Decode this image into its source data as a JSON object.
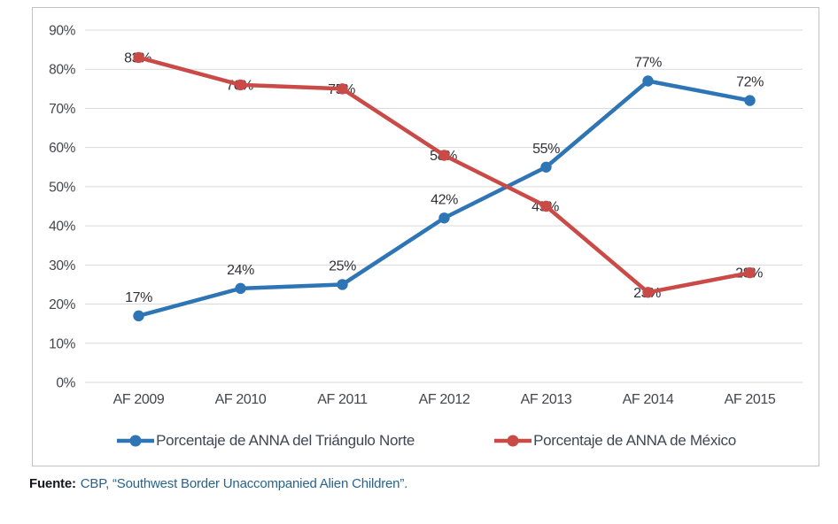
{
  "chart_data": {
    "type": "line",
    "categories": [
      "AF 2009",
      "AF 2010",
      "AF 2011",
      "AF 2012",
      "AF 2013",
      "AF 2014",
      "AF 2015"
    ],
    "series": [
      {
        "name": "Porcentaje de ANNA del Triángulo Norte",
        "color": "#2E75B6",
        "values": [
          17,
          24,
          25,
          42,
          55,
          77,
          72
        ],
        "label_position": "above"
      },
      {
        "name": "Porcentaje de ANNA de México",
        "color": "#C94A46",
        "values": [
          83,
          76,
          75,
          58,
          45,
          23,
          28
        ],
        "label_position": "center"
      }
    ],
    "ylim": [
      0,
      90
    ],
    "ytick_step": 10,
    "yticks": [
      "0%",
      "10%",
      "20%",
      "30%",
      "40%",
      "50%",
      "60%",
      "70%",
      "80%",
      "90%"
    ],
    "data_label_suffix": "%",
    "grid": true,
    "legend_position": "bottom",
    "grid_color": "#D9D9D9"
  },
  "footer": {
    "source_label": "Fuente:",
    "source_text": "CBP, “Southwest Border Unaccompanied Alien Children”."
  }
}
